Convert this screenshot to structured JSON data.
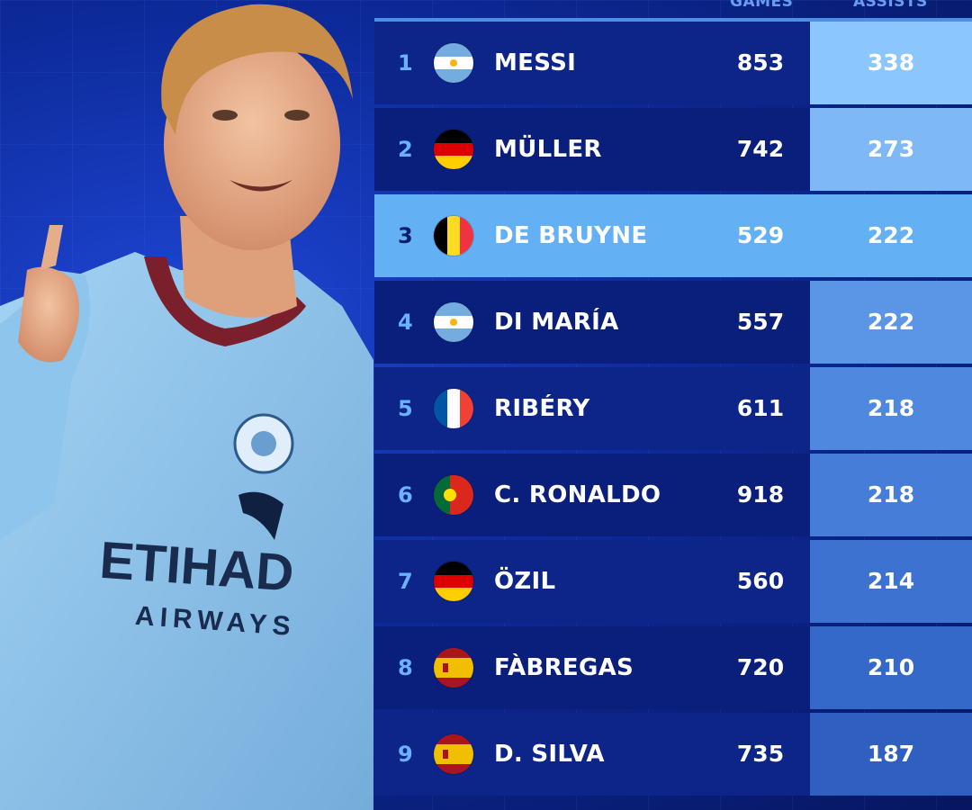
{
  "header": {
    "games_label": "GAMES",
    "assists_label": "ASSISTS"
  },
  "colors": {
    "background": "#0d2a9a",
    "row_dark": "#0d2589",
    "highlight": "#64b0f5",
    "assist_gradient": [
      "#8cc6ff",
      "#7eb8f5",
      "#6aa5ec",
      "#5b96e6",
      "#4f88df",
      "#457dd8",
      "#3d72d0",
      "#3569c9",
      "#2f5fc0"
    ]
  },
  "rows": [
    {
      "rank": "1",
      "flag": "argentina-flag-icon",
      "name": "MESSI",
      "games": "853",
      "assists": "338"
    },
    {
      "rank": "2",
      "flag": "germany-flag-icon",
      "name": "MÜLLER",
      "games": "742",
      "assists": "273"
    },
    {
      "rank": "3",
      "flag": "belgium-flag-icon",
      "name": "DE BRUYNE",
      "games": "529",
      "assists": "222"
    },
    {
      "rank": "4",
      "flag": "argentina-flag-icon",
      "name": "DI MARÍA",
      "games": "557",
      "assists": "222"
    },
    {
      "rank": "5",
      "flag": "france-flag-icon",
      "name": "RIBÉRY",
      "games": "611",
      "assists": "218"
    },
    {
      "rank": "6",
      "flag": "portugal-flag-icon",
      "name": "C. RONALDO",
      "games": "918",
      "assists": "218"
    },
    {
      "rank": "7",
      "flag": "germany-flag-icon",
      "name": "ÖZIL",
      "games": "560",
      "assists": "214"
    },
    {
      "rank": "8",
      "flag": "spain-flag-icon",
      "name": "FÀBREGAS",
      "games": "720",
      "assists": "210"
    },
    {
      "rank": "9",
      "flag": "spain-flag-icon",
      "name": "D. SILVA",
      "games": "735",
      "assists": "187"
    }
  ],
  "highlight_rank": "3",
  "player": {
    "shirt_sponsor": "ETIHAD",
    "shirt_sponsor_sub": "AIRWAYS",
    "club_badge": "MANCHESTER CITY"
  }
}
